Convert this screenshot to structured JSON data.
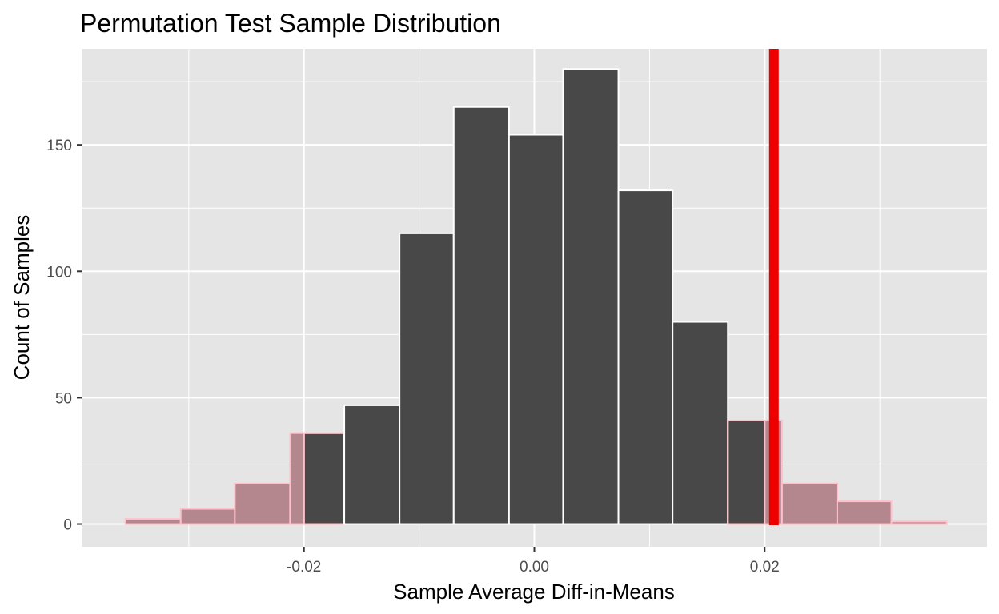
{
  "chart_data": {
    "type": "bar",
    "title": "Permutation Test Sample Distribution",
    "xlabel": "Sample Average Diff-in-Means",
    "ylabel": "Count of Samples",
    "xlim": [
      -0.0393,
      0.0393
    ],
    "ylim": [
      -9,
      188
    ],
    "x_ticks": [
      -0.02,
      0.0,
      0.02
    ],
    "x_tick_labels": [
      "-0.02",
      "0.00",
      "0.02"
    ],
    "y_ticks": [
      0,
      50,
      100,
      150
    ],
    "y_tick_labels": [
      "0",
      "50",
      "100",
      "150"
    ],
    "grid": true,
    "colors": {
      "panel": "#e5e5e5",
      "grid": "#ffffff",
      "inner_bar_fill": "#484848",
      "inner_bar_outline": "#ffffff",
      "tail_fill": "#b4878e",
      "tail_outline": "#ffc0cb",
      "observed_line": "#ee0000"
    },
    "bins": [
      {
        "x0": -0.0355,
        "x1": -0.0307,
        "count": 2
      },
      {
        "x0": -0.0307,
        "x1": -0.026,
        "count": 6
      },
      {
        "x0": -0.026,
        "x1": -0.0212,
        "count": 16
      },
      {
        "x0": -0.0212,
        "x1": -0.0165,
        "count": 36
      },
      {
        "x0": -0.0165,
        "x1": -0.0117,
        "count": 47
      },
      {
        "x0": -0.0117,
        "x1": -0.007,
        "count": 115
      },
      {
        "x0": -0.007,
        "x1": -0.0022,
        "count": 165
      },
      {
        "x0": -0.0022,
        "x1": 0.0025,
        "count": 154
      },
      {
        "x0": 0.0025,
        "x1": 0.0073,
        "count": 180
      },
      {
        "x0": 0.0073,
        "x1": 0.012,
        "count": 132
      },
      {
        "x0": 0.012,
        "x1": 0.0168,
        "count": 80
      },
      {
        "x0": 0.0168,
        "x1": 0.0215,
        "count": 41
      },
      {
        "x0": 0.0215,
        "x1": 0.0263,
        "count": 16
      },
      {
        "x0": 0.0263,
        "x1": 0.031,
        "count": 9
      },
      {
        "x0": 0.031,
        "x1": 0.0358,
        "count": 1
      }
    ],
    "tail_threshold": 0.02,
    "observed_value": 0.0208
  }
}
